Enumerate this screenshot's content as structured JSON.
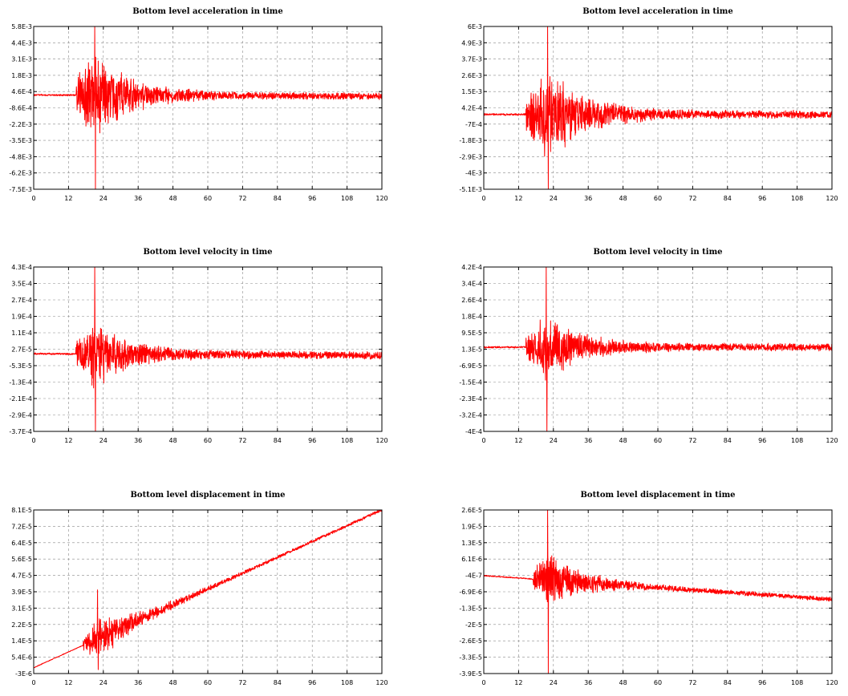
{
  "colors": {
    "trace": "#ff0000",
    "grid": "#8a8a8a",
    "frame": "#000000"
  },
  "chart_data": [
    {
      "type": "line",
      "title": "Bottom level acceleration in time",
      "xlabel": "",
      "ylabel": "",
      "xlim": [
        0,
        120
      ],
      "ylim": [
        -0.0075,
        0.0058
      ],
      "x_ticks": [
        "0",
        "12",
        "24",
        "36",
        "48",
        "60",
        "72",
        "84",
        "96",
        "108",
        "120"
      ],
      "y_ticks": [
        "5.8E-3",
        "4.4E-3",
        "3.1E-3",
        "1.8E-3",
        "4.6E-4",
        "-8.6E-4",
        "-2.2E-3",
        "-3.5E-3",
        "-4.8E-3",
        "-6.2E-3",
        "-7.5E-3"
      ],
      "grid": true,
      "series": [
        {
          "kind": "noise",
          "baseline_start": 0.0002,
          "baseline_end": 0.0001,
          "onset": 14.5,
          "peak_time": 21,
          "peak_pos": 0.0058,
          "peak_neg": -0.0075,
          "env_max": 0.004,
          "decay": 12,
          "tail": 0.0003
        }
      ]
    },
    {
      "type": "line",
      "title": "Bottom level acceleration in time",
      "xlabel": "",
      "ylabel": "",
      "xlim": [
        0,
        120
      ],
      "ylim": [
        -0.0051,
        0.006
      ],
      "x_ticks": [
        "0",
        "12",
        "24",
        "36",
        "48",
        "60",
        "72",
        "84",
        "96",
        "108",
        "120"
      ],
      "y_ticks": [
        "6E-3",
        "4.9E-3",
        "3.7E-3",
        "2.6E-3",
        "1.5E-3",
        "4.2E-4",
        "-7E-4",
        "-1.8E-3",
        "-2.9E-3",
        "-4E-3",
        "-5.1E-3"
      ],
      "grid": true,
      "series": [
        {
          "kind": "noise",
          "baseline_start": 0.0,
          "baseline_end": 0.0,
          "onset": 14.5,
          "peak_time": 22,
          "peak_pos": 0.006,
          "peak_neg": -0.0051,
          "env_max": 0.0038,
          "decay": 12,
          "tail": 0.0003
        }
      ]
    },
    {
      "type": "line",
      "title": "Bottom level velocity in time",
      "xlabel": "",
      "ylabel": "",
      "xlim": [
        0,
        120
      ],
      "ylim": [
        -0.00037,
        0.00043
      ],
      "x_ticks": [
        "0",
        "12",
        "24",
        "36",
        "48",
        "60",
        "72",
        "84",
        "96",
        "108",
        "120"
      ],
      "y_ticks": [
        "4.3E-4",
        "3.5E-4",
        "2.7E-4",
        "1.9E-4",
        "1.1E-4",
        "2.7E-5",
        "-5.3E-5",
        "-1.3E-4",
        "-2.1E-4",
        "-2.9E-4",
        "-3.7E-4"
      ],
      "grid": true,
      "series": [
        {
          "kind": "noise",
          "baseline_start": 8e-06,
          "baseline_end": 0.0,
          "onset": 14.5,
          "peak_time": 21,
          "peak_pos": 0.00043,
          "peak_neg": -0.00037,
          "env_max": 0.00018,
          "decay": 12,
          "tail": 2e-05
        }
      ]
    },
    {
      "type": "line",
      "title": "Bottom level velocity in time",
      "xlabel": "",
      "ylabel": "",
      "xlim": [
        0,
        120
      ],
      "ylim": [
        -0.0004,
        0.00042
      ],
      "x_ticks": [
        "0",
        "12",
        "24",
        "36",
        "48",
        "60",
        "72",
        "84",
        "96",
        "108",
        "120"
      ],
      "y_ticks": [
        "4.2E-4",
        "3.4E-4",
        "2.6E-4",
        "1.8E-4",
        "9.5E-5",
        "1.3E-5",
        "-6.9E-5",
        "-1.5E-4",
        "-2.3E-4",
        "-3.2E-4",
        "-4E-4"
      ],
      "grid": true,
      "series": [
        {
          "kind": "noise",
          "baseline_start": 2e-05,
          "baseline_end": 2e-05,
          "onset": 14.5,
          "peak_time": 21.5,
          "peak_pos": 0.00042,
          "peak_neg": -0.0004,
          "env_max": 0.00018,
          "decay": 12,
          "tail": 2e-05
        }
      ]
    },
    {
      "type": "line",
      "title": "Bottom level displacement in time",
      "xlabel": "",
      "ylabel": "",
      "xlim": [
        0,
        120
      ],
      "ylim": [
        -3e-06,
        8.1e-05
      ],
      "x_ticks": [
        "0",
        "12",
        "24",
        "36",
        "48",
        "60",
        "72",
        "84",
        "96",
        "108",
        "120"
      ],
      "y_ticks": [
        "8.1E-5",
        "7.2E-5",
        "6.4E-5",
        "5.6E-5",
        "4.7E-5",
        "3.9E-5",
        "3.1E-5",
        "2.2E-5",
        "1.4E-5",
        "5.4E-6",
        "-3E-6"
      ],
      "grid": true,
      "series": [
        {
          "kind": "noise",
          "baseline_start": 0.0,
          "baseline_end": 8.1e-05,
          "onset": 17,
          "peak_time": 22,
          "peak_pos": 4e-05,
          "peak_neg": -1e-06,
          "env_max": 1.2e-05,
          "decay": 14,
          "tail": 8e-07
        }
      ]
    },
    {
      "type": "line",
      "title": "Bottom level displacement in time",
      "xlabel": "",
      "ylabel": "",
      "xlim": [
        0,
        120
      ],
      "ylim": [
        -3.9e-05,
        2.6e-05
      ],
      "x_ticks": [
        "0",
        "12",
        "24",
        "36",
        "48",
        "60",
        "72",
        "84",
        "96",
        "108",
        "120"
      ],
      "y_ticks": [
        "2.6E-5",
        "1.9E-5",
        "1.3E-5",
        "6.1E-6",
        "-4E-7",
        "-6.9E-6",
        "-1.3E-5",
        "-2E-5",
        "-2.6E-5",
        "-3.3E-5",
        "-3.9E-5"
      ],
      "grid": true,
      "series": [
        {
          "kind": "noise",
          "baseline_start": -1e-07,
          "baseline_end": -9.5e-06,
          "onset": 17,
          "peak_time": 22,
          "peak_pos": 2.6e-05,
          "peak_neg": -3.9e-05,
          "env_max": 1.2e-05,
          "decay": 12,
          "tail": 1e-06
        }
      ]
    }
  ]
}
